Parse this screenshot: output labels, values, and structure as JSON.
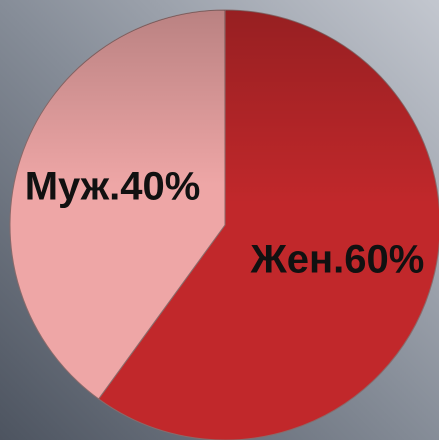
{
  "chart_data": {
    "type": "pie",
    "categories": [
      "Жен.",
      "Муж."
    ],
    "values": [
      60,
      40
    ],
    "value_labels": [
      "60%",
      "40%"
    ],
    "colors": [
      "#c1282b",
      "#eea6a6"
    ]
  }
}
